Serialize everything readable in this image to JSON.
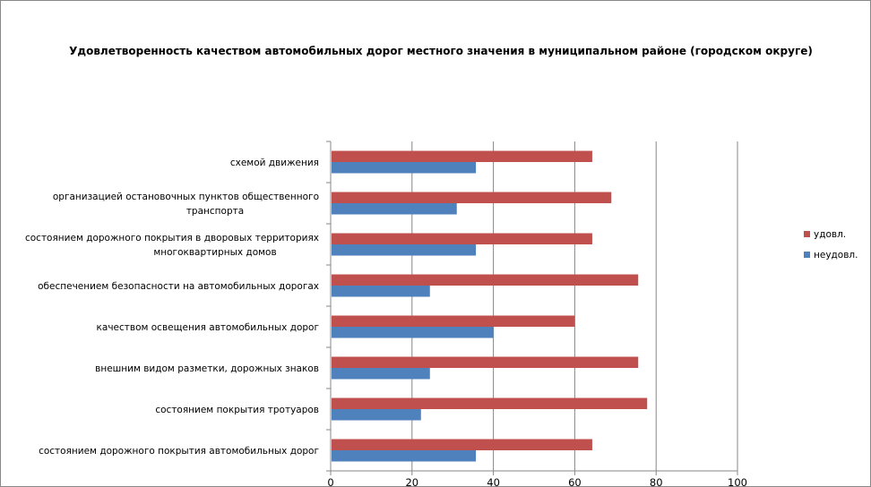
{
  "chart_data": {
    "type": "bar",
    "orientation": "horizontal",
    "title": "Удовлетворенность качеством автомобильных дорог местного значения в муниципальном районе (городском округе)",
    "categories": [
      [
        "схемой движения"
      ],
      [
        "организацией остановочных пунктов общественного",
        "транспорта"
      ],
      [
        "состоянием дорожного покрытия в дворовых территориях",
        "многоквартирных домов"
      ],
      [
        "обеспечением  безопасности на автомобильных дорогах"
      ],
      [
        "качеством освещения  автомобильных дорог"
      ],
      [
        "внешним  видом разметки, дорожных знаков"
      ],
      [
        "состоянием покрытия тротуаров"
      ],
      [
        "состоянием дорожного покрытия автомобильных дорог"
      ]
    ],
    "series": [
      {
        "name": "удовл.",
        "color": "#C0504D",
        "values": [
          64.3,
          69,
          64.3,
          75.6,
          60,
          75.6,
          77.8,
          64.3
        ]
      },
      {
        "name": "неудовл.",
        "color": "#4F81BD",
        "values": [
          35.7,
          31,
          35.7,
          24.4,
          40,
          24.4,
          22.2,
          35.7
        ]
      }
    ],
    "xlim": [
      0,
      100
    ],
    "xticks": [
      "0",
      "20",
      "40",
      "60",
      "80",
      "100"
    ],
    "grid": true,
    "legend": "right"
  }
}
